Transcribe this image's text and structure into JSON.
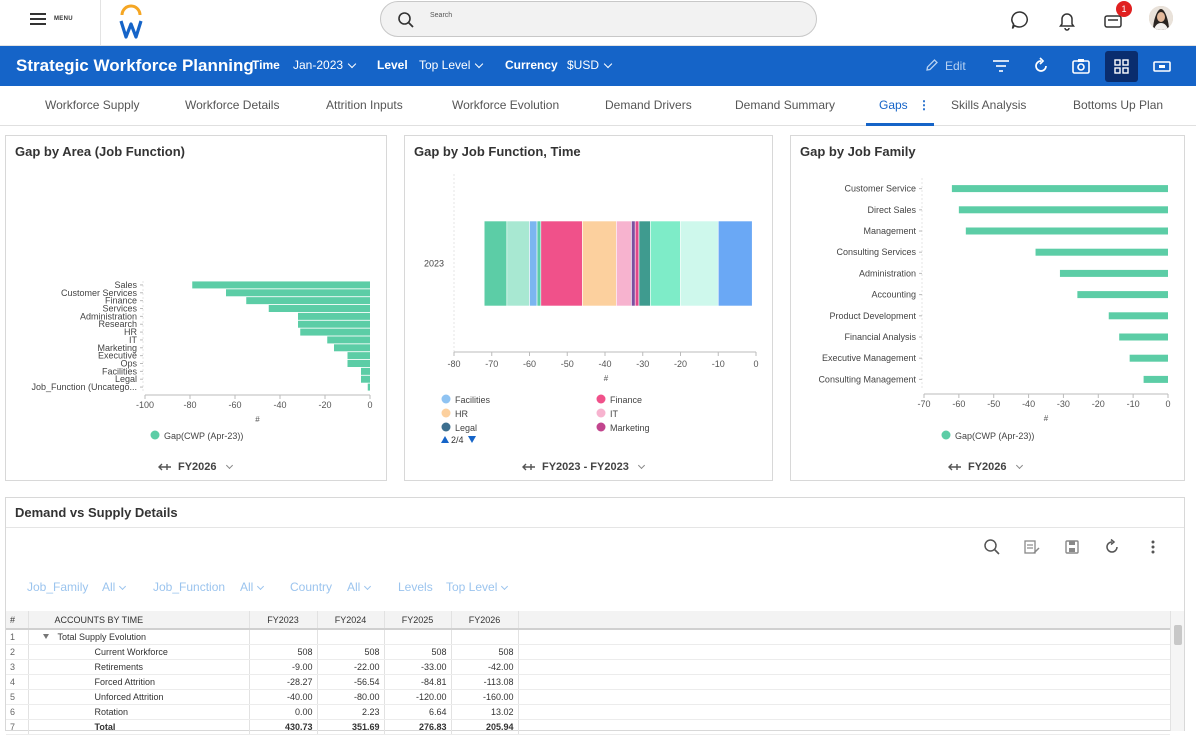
{
  "topbar": {
    "menu_label": "MENU",
    "search_placeholder": "Search",
    "notification_count": "1"
  },
  "header": {
    "title": "Strategic Workforce Planning",
    "time_label": "Time",
    "time_value": "Jan-2023",
    "level_label": "Level",
    "level_value": "Top Level",
    "currency_label": "Currency",
    "currency_value": "$USD",
    "edit_label": "Edit"
  },
  "tabs": [
    {
      "label": "Workforce Supply"
    },
    {
      "label": "Workforce Details"
    },
    {
      "label": "Attrition Inputs"
    },
    {
      "label": "Workforce Evolution"
    },
    {
      "label": "Demand Drivers"
    },
    {
      "label": "Demand Summary"
    },
    {
      "label": "Gaps"
    },
    {
      "label": "Skills Analysis"
    },
    {
      "label": "Bottoms Up Plan"
    }
  ],
  "chart_data": [
    {
      "type": "bar",
      "orientation": "horizontal",
      "title": "Gap by Area (Job Function)",
      "xlabel": "#",
      "xlim": [
        -100,
        0
      ],
      "xticks": [
        "-100",
        "-80",
        "-60",
        "-40",
        "-20",
        "0"
      ],
      "categories": [
        "Sales",
        "Customer Services",
        "Finance",
        "Services",
        "Administration",
        "Research",
        "HR",
        "IT",
        "Marketing",
        "Executive",
        "Ops",
        "Facilities",
        "Legal",
        "Job_Function (Uncatego..."
      ],
      "values": [
        -79,
        -64,
        -55,
        -45,
        -32,
        -32,
        -31,
        -19,
        -16,
        -10,
        -10,
        -4,
        -4,
        -1
      ],
      "legend": [
        "Gap(CWP (Apr-23))"
      ],
      "footer": "FY2026",
      "color": "#5ccda6"
    },
    {
      "type": "bar",
      "orientation": "horizontal",
      "stacked": true,
      "title": "Gap by Job Function, Time",
      "xlabel": "#",
      "xlim": [
        -80,
        0
      ],
      "xticks": [
        "-80",
        "-70",
        "-60",
        "-50",
        "-40",
        "-30",
        "-20",
        "-10",
        "0"
      ],
      "categories": [
        "2023"
      ],
      "segments": [
        {
          "from": -72,
          "to": -66,
          "color": "#5ccda6"
        },
        {
          "from": -66,
          "to": -60,
          "color": "#a8e8d2"
        },
        {
          "from": -60,
          "to": -58,
          "color": "#7bb6f0"
        },
        {
          "from": -58,
          "to": -57,
          "color": "#5ccda6"
        },
        {
          "from": -57,
          "to": -46,
          "color": "#f0518a"
        },
        {
          "from": -46,
          "to": -37,
          "color": "#fcd09e"
        },
        {
          "from": -37,
          "to": -33,
          "color": "#f7b3cf"
        },
        {
          "from": -33,
          "to": -32,
          "color": "#7b4fa0"
        },
        {
          "from": -32,
          "to": -31,
          "color": "#e0478a"
        },
        {
          "from": -31,
          "to": -28,
          "color": "#3f9b8f"
        },
        {
          "from": -28,
          "to": -20,
          "color": "#7eecc8"
        },
        {
          "from": -20,
          "to": -10,
          "color": "#cef8ec"
        },
        {
          "from": -10,
          "to": -1,
          "color": "#6aa8f5"
        }
      ],
      "legend": [
        {
          "name": "Facilities",
          "color": "#8fc3f2"
        },
        {
          "name": "Finance",
          "color": "#f0518a"
        },
        {
          "name": "HR",
          "color": "#fcd09e"
        },
        {
          "name": "IT",
          "color": "#f7b3cf"
        },
        {
          "name": "Legal",
          "color": "#3d6f8f"
        },
        {
          "name": "Marketing",
          "color": "#c2458e"
        }
      ],
      "legend_page": "2/4",
      "footer": "FY2023 - FY2023"
    },
    {
      "type": "bar",
      "orientation": "horizontal",
      "title": "Gap by Job Family",
      "xlabel": "#",
      "xlim": [
        -70,
        0
      ],
      "xticks": [
        "-70",
        "-60",
        "-50",
        "-40",
        "-30",
        "-20",
        "-10",
        "0"
      ],
      "categories": [
        "Customer Service",
        "Direct Sales",
        "Management",
        "Consulting Services",
        "Administration",
        "Accounting",
        "Product Development",
        "Financial Analysis",
        "Executive Management",
        "Consulting Management"
      ],
      "values": [
        -62,
        -60,
        -58,
        -38,
        -31,
        -26,
        -17,
        -14,
        -11,
        -7
      ],
      "legend": [
        "Gap(CWP (Apr-23))"
      ],
      "footer": "FY2026",
      "color": "#5ccda6"
    }
  ],
  "details": {
    "title": "Demand vs Supply Details",
    "filters": [
      {
        "name": "Job_Family",
        "value": "All"
      },
      {
        "name": "Job_Function",
        "value": "All"
      },
      {
        "name": "Country",
        "value": "All"
      },
      {
        "name": "Levels",
        "value": "Top Level"
      }
    ],
    "grid": {
      "headers": [
        "#",
        "ACCOUNTS BY TIME",
        "FY2023",
        "FY2024",
        "FY2025",
        "FY2026"
      ],
      "rows": [
        {
          "n": "1",
          "label": "Total Supply Evolution",
          "vals": [
            "",
            "",
            "",
            ""
          ]
        },
        {
          "n": "2",
          "label": "Current Workforce",
          "vals": [
            "508",
            "508",
            "508",
            "508"
          ]
        },
        {
          "n": "3",
          "label": "Retirements",
          "vals": [
            "-9.00",
            "-22.00",
            "-33.00",
            "-42.00"
          ]
        },
        {
          "n": "4",
          "label": "Forced Attrition",
          "vals": [
            "-28.27",
            "-56.54",
            "-84.81",
            "-113.08"
          ]
        },
        {
          "n": "5",
          "label": "Unforced Attrition",
          "vals": [
            "-40.00",
            "-80.00",
            "-120.00",
            "-160.00"
          ]
        },
        {
          "n": "6",
          "label": "Rotation",
          "vals": [
            "0.00",
            "2.23",
            "6.64",
            "13.02"
          ]
        },
        {
          "n": "7",
          "label": "Total",
          "vals": [
            "430.73",
            "351.69",
            "276.83",
            "205.94"
          ]
        }
      ]
    }
  }
}
